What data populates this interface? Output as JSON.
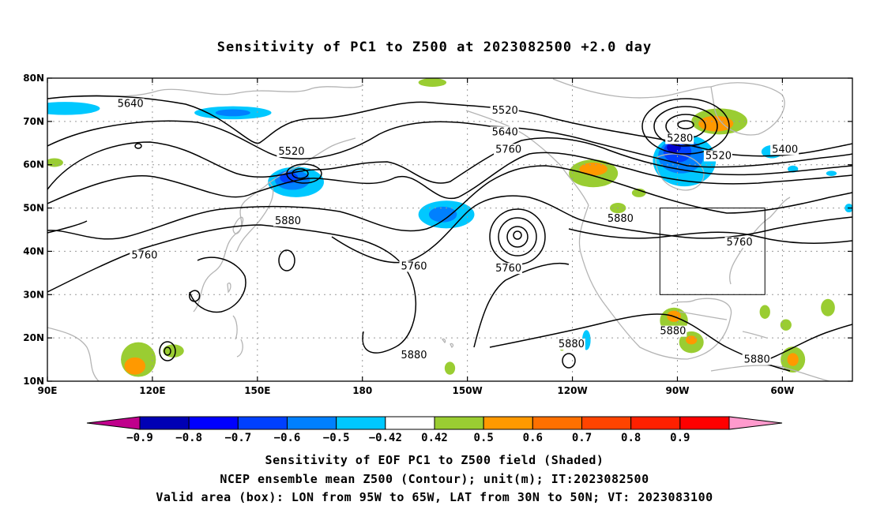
{
  "title": "Sensitivity of PC1 to Z500 at 2023082500 +2.0 day",
  "captions": [
    "Sensitivity of EOF PC1 to Z500 field (Shaded)",
    "NCEP ensemble mean Z500 (Contour); unit(m); IT:2023082500",
    "Valid area (box): LON from 95W to 65W, LAT from 30N to 50N; VT: 2023083100"
  ],
  "map": {
    "lon_range": [
      90,
      320
    ],
    "lat_range": [
      10,
      80
    ],
    "lon_ticks": [
      {
        "lon": 90,
        "label": "90E"
      },
      {
        "lon": 120,
        "label": "120E"
      },
      {
        "lon": 150,
        "label": "150E"
      },
      {
        "lon": 180,
        "label": "180"
      },
      {
        "lon": 210,
        "label": "150W"
      },
      {
        "lon": 240,
        "label": "120W"
      },
      {
        "lon": 270,
        "label": "90W"
      },
      {
        "lon": 300,
        "label": "60W"
      }
    ],
    "lat_ticks": [
      {
        "lat": 80,
        "label": "80N"
      },
      {
        "lat": 70,
        "label": "70N"
      },
      {
        "lat": 60,
        "label": "60N"
      },
      {
        "lat": 50,
        "label": "50N"
      },
      {
        "lat": 40,
        "label": "40N"
      },
      {
        "lat": 30,
        "label": "30N"
      },
      {
        "lat": 20,
        "label": "20N"
      },
      {
        "lat": 10,
        "label": "10N"
      }
    ],
    "valid_box": {
      "lon_min": 265,
      "lon_max": 295,
      "lat_min": 30,
      "lat_max": 50
    },
    "contour_labels": [
      {
        "text": "5640",
        "lon": 110,
        "lat": 73.5
      },
      {
        "text": "5520",
        "lon": 156,
        "lat": 62.5
      },
      {
        "text": "5880",
        "lon": 155,
        "lat": 46.5
      },
      {
        "text": "5760",
        "lon": 114,
        "lat": 38.5
      },
      {
        "text": "5760",
        "lon": 191,
        "lat": 36
      },
      {
        "text": "5760",
        "lon": 218,
        "lat": 35.5
      },
      {
        "text": "5880",
        "lon": 250,
        "lat": 47
      },
      {
        "text": "5880",
        "lon": 191,
        "lat": 15.5
      },
      {
        "text": "5880",
        "lon": 236,
        "lat": 18
      },
      {
        "text": "5880",
        "lon": 265,
        "lat": 21
      },
      {
        "text": "5880",
        "lon": 289,
        "lat": 14.5
      },
      {
        "text": "5520",
        "lon": 217,
        "lat": 72
      },
      {
        "text": "5640",
        "lon": 217,
        "lat": 67
      },
      {
        "text": "5760",
        "lon": 218,
        "lat": 63
      },
      {
        "text": "5280",
        "lon": 267,
        "lat": 65.5
      },
      {
        "text": "5520",
        "lon": 278,
        "lat": 61.5
      },
      {
        "text": "5400",
        "lon": 297,
        "lat": 63
      },
      {
        "text": "5760",
        "lon": 284,
        "lat": 41.5
      }
    ],
    "shading": [
      {
        "lon": 95,
        "lat": 73,
        "rx": 10,
        "ry": 1.5,
        "color": "#00c8ff"
      },
      {
        "lon": 143,
        "lat": 72,
        "rx": 11,
        "ry": 1.5,
        "color": "#00c8ff"
      },
      {
        "lon": 143,
        "lat": 72,
        "rx": 5,
        "ry": 0.8,
        "color": "#0080ff"
      },
      {
        "lon": 161,
        "lat": 56,
        "rx": 8,
        "ry": 3.5,
        "color": "#00c8ff"
      },
      {
        "lon": 160,
        "lat": 56.5,
        "rx": 5,
        "ry": 2.3,
        "color": "#0080ff"
      },
      {
        "lon": 159,
        "lat": 57,
        "rx": 2.6,
        "ry": 1.3,
        "color": "#0040ff"
      },
      {
        "lon": 204,
        "lat": 48.5,
        "rx": 8,
        "ry": 3.2,
        "color": "#00c8ff"
      },
      {
        "lon": 203,
        "lat": 48.5,
        "rx": 4,
        "ry": 1.8,
        "color": "#0080ff"
      },
      {
        "lon": 246,
        "lat": 58,
        "rx": 7,
        "ry": 3.2,
        "color": "#9acd32"
      },
      {
        "lon": 246,
        "lat": 59,
        "rx": 4,
        "ry": 1.5,
        "color": "#ff9900"
      },
      {
        "lon": 272,
        "lat": 61,
        "rx": 9,
        "ry": 6,
        "color": "#00c8ff"
      },
      {
        "lon": 271,
        "lat": 62,
        "rx": 6.5,
        "ry": 4,
        "color": "#0080ff"
      },
      {
        "lon": 270,
        "lat": 63,
        "rx": 4,
        "ry": 2.5,
        "color": "#0040ff"
      },
      {
        "lon": 269,
        "lat": 64,
        "rx": 2,
        "ry": 1.2,
        "color": "#0000d0"
      },
      {
        "lon": 282,
        "lat": 70,
        "rx": 8,
        "ry": 3,
        "color": "#9acd32"
      },
      {
        "lon": 281,
        "lat": 69.5,
        "rx": 5,
        "ry": 1.8,
        "color": "#ff9900"
      },
      {
        "lon": 297,
        "lat": 63,
        "rx": 3,
        "ry": 1.5,
        "color": "#00c8ff"
      },
      {
        "lon": 116,
        "lat": 15,
        "rx": 5,
        "ry": 4,
        "color": "#9acd32"
      },
      {
        "lon": 115,
        "lat": 13.5,
        "rx": 3,
        "ry": 2,
        "color": "#ff9900"
      },
      {
        "lon": 126,
        "lat": 17,
        "rx": 3,
        "ry": 1.5,
        "color": "#9acd32"
      },
      {
        "lon": 92,
        "lat": 60.5,
        "rx": 2.5,
        "ry": 1,
        "color": "#9acd32"
      },
      {
        "lon": 253,
        "lat": 50,
        "rx": 2.3,
        "ry": 1.2,
        "color": "#9acd32"
      },
      {
        "lon": 259,
        "lat": 53.5,
        "rx": 2,
        "ry": 1,
        "color": "#9acd32"
      },
      {
        "lon": 269,
        "lat": 24,
        "rx": 4,
        "ry": 3,
        "color": "#9acd32"
      },
      {
        "lon": 269,
        "lat": 25,
        "rx": 2,
        "ry": 1.3,
        "color": "#ff9900"
      },
      {
        "lon": 274,
        "lat": 19,
        "rx": 3.5,
        "ry": 2.5,
        "color": "#9acd32"
      },
      {
        "lon": 274,
        "lat": 19.5,
        "rx": 1.6,
        "ry": 1,
        "color": "#ff9900"
      },
      {
        "lon": 303,
        "lat": 15,
        "rx": 3.5,
        "ry": 3,
        "color": "#9acd32"
      },
      {
        "lon": 303,
        "lat": 15,
        "rx": 1.6,
        "ry": 1.5,
        "color": "#ff9900"
      },
      {
        "lon": 313,
        "lat": 27,
        "rx": 2,
        "ry": 2,
        "color": "#9acd32"
      },
      {
        "lon": 301,
        "lat": 23,
        "rx": 1.6,
        "ry": 1.3,
        "color": "#9acd32"
      },
      {
        "lon": 295,
        "lat": 26,
        "rx": 1.5,
        "ry": 1.6,
        "color": "#9acd32"
      },
      {
        "lon": 244,
        "lat": 19.5,
        "rx": 1.2,
        "ry": 2.3,
        "color": "#00c8ff"
      },
      {
        "lon": 303,
        "lat": 59,
        "rx": 1.5,
        "ry": 0.8,
        "color": "#00c8ff"
      },
      {
        "lon": 319,
        "lat": 50,
        "rx": 1.2,
        "ry": 1,
        "color": "#00c8ff"
      },
      {
        "lon": 314,
        "lat": 58,
        "rx": 1.5,
        "ry": 0.6,
        "color": "#00c8ff"
      },
      {
        "lon": 237,
        "lat": 18,
        "rx": 0.8,
        "ry": 1,
        "color": "#9acd32"
      },
      {
        "lon": 200,
        "lat": 79,
        "rx": 4,
        "ry": 1,
        "color": "#9acd32"
      },
      {
        "lon": 205,
        "lat": 13,
        "rx": 1.5,
        "ry": 1.5,
        "color": "#9acd32"
      }
    ]
  },
  "colorbar": {
    "colors": [
      "#c0008c",
      "#0000b4",
      "#0000ff",
      "#0040ff",
      "#0080ff",
      "#00c8ff",
      "#ffffff",
      "#9acd32",
      "#ff9900",
      "#ff7000",
      "#ff4400",
      "#ff2000",
      "#ff0000",
      "#ff9acd"
    ],
    "labels": [
      "−0.9",
      "−0.8",
      "−0.7",
      "−0.6",
      "−0.5",
      "−0.42",
      "0.42",
      "0.5",
      "0.6",
      "0.7",
      "0.8",
      "0.9"
    ]
  }
}
